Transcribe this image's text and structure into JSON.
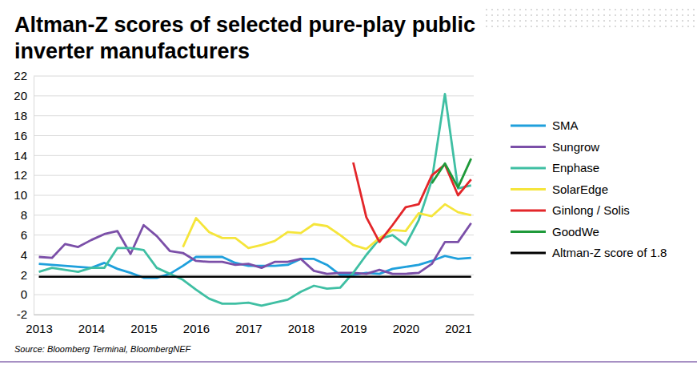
{
  "chart_data": {
    "type": "line",
    "title": "Altman-Z scores of selected pure-play public inverter manufacturers",
    "source": "Source: Bloomberg Terminal, BloombergNEF",
    "x": [
      2013,
      2013.25,
      2013.5,
      2013.75,
      2014,
      2014.25,
      2014.5,
      2014.75,
      2015,
      2015.25,
      2015.5,
      2015.75,
      2016,
      2016.25,
      2016.5,
      2016.75,
      2017,
      2017.25,
      2017.5,
      2017.75,
      2018,
      2018.25,
      2018.5,
      2018.75,
      2019,
      2019.25,
      2019.5,
      2019.75,
      2020,
      2020.25,
      2020.5,
      2020.75,
      2021,
      2021.25
    ],
    "xlim": [
      2012.9,
      2021.3
    ],
    "xticks": [
      2013,
      2014,
      2015,
      2016,
      2017,
      2018,
      2019,
      2020,
      2021
    ],
    "ylim": [
      -2,
      22
    ],
    "yticks": [
      -2,
      0,
      2,
      4,
      6,
      8,
      10,
      12,
      14,
      16,
      18,
      20,
      22
    ],
    "grid": true,
    "legend": "right",
    "series": [
      {
        "name": "SMA",
        "color": "#1fa0dc",
        "values": [
          3.1,
          3.0,
          2.9,
          2.8,
          2.7,
          3.2,
          2.6,
          2.2,
          1.7,
          1.7,
          2.1,
          2.9,
          3.8,
          3.8,
          3.8,
          3.2,
          2.9,
          2.9,
          2.9,
          3.0,
          3.6,
          3.6,
          3.0,
          2.0,
          2.0,
          2.2,
          2.1,
          2.6,
          2.8,
          3.0,
          3.4,
          3.9,
          3.6,
          3.7
        ]
      },
      {
        "name": "Sungrow",
        "color": "#7b4fa8",
        "values": [
          3.8,
          3.7,
          5.1,
          4.8,
          5.5,
          6.1,
          6.4,
          4.1,
          7.0,
          5.9,
          4.4,
          4.2,
          3.4,
          3.3,
          3.3,
          3.0,
          3.1,
          2.7,
          3.3,
          3.3,
          3.6,
          2.4,
          2.1,
          2.2,
          2.2,
          2.1,
          2.5,
          2.1,
          2.1,
          2.2,
          3.1,
          5.3,
          5.3,
          7.2
        ]
      },
      {
        "name": "Enphase",
        "color": "#3fbfa3",
        "values": [
          2.3,
          2.7,
          2.5,
          2.3,
          2.7,
          2.7,
          4.7,
          4.7,
          4.5,
          2.7,
          2.1,
          1.5,
          0.5,
          -0.4,
          -0.9,
          -0.9,
          -0.8,
          -1.1,
          -0.8,
          -0.5,
          0.3,
          0.9,
          0.6,
          0.7,
          2.2,
          4.0,
          5.6,
          6.0,
          5.0,
          7.5,
          11.5,
          20.2,
          10.7,
          11.0
        ]
      },
      {
        "name": "SolarEdge",
        "color": "#f5e53b",
        "values": [
          null,
          null,
          null,
          null,
          null,
          null,
          null,
          null,
          null,
          null,
          null,
          4.8,
          7.7,
          6.3,
          5.7,
          5.7,
          4.7,
          5.0,
          5.4,
          6.3,
          6.2,
          7.1,
          6.9,
          6.0,
          5.0,
          4.6,
          5.7,
          6.5,
          6.4,
          8.2,
          7.9,
          9.1,
          8.3,
          8.0
        ]
      },
      {
        "name": "Ginlong / Solis",
        "color": "#e3262a",
        "values": [
          null,
          null,
          null,
          null,
          null,
          null,
          null,
          null,
          null,
          null,
          null,
          null,
          null,
          null,
          null,
          null,
          null,
          null,
          null,
          null,
          null,
          null,
          null,
          null,
          13.3,
          7.8,
          5.3,
          7.0,
          8.8,
          9.1,
          12.0,
          13.1,
          10.0,
          11.6
        ]
      },
      {
        "name": "GoodWe",
        "color": "#1f9a3a",
        "values": [
          null,
          null,
          null,
          null,
          null,
          null,
          null,
          null,
          null,
          null,
          null,
          null,
          null,
          null,
          null,
          null,
          null,
          null,
          null,
          null,
          null,
          null,
          null,
          null,
          null,
          null,
          null,
          null,
          null,
          null,
          11.2,
          13.2,
          10.8,
          13.7
        ]
      },
      {
        "name": "Altman-Z score of 1.8",
        "color": "#000000",
        "values": [
          1.8,
          1.8,
          1.8,
          1.8,
          1.8,
          1.8,
          1.8,
          1.8,
          1.8,
          1.8,
          1.8,
          1.8,
          1.8,
          1.8,
          1.8,
          1.8,
          1.8,
          1.8,
          1.8,
          1.8,
          1.8,
          1.8,
          1.8,
          1.8,
          1.8,
          1.8,
          1.8,
          1.8,
          1.8,
          1.8,
          1.8,
          1.8,
          1.8,
          1.8
        ]
      }
    ]
  }
}
